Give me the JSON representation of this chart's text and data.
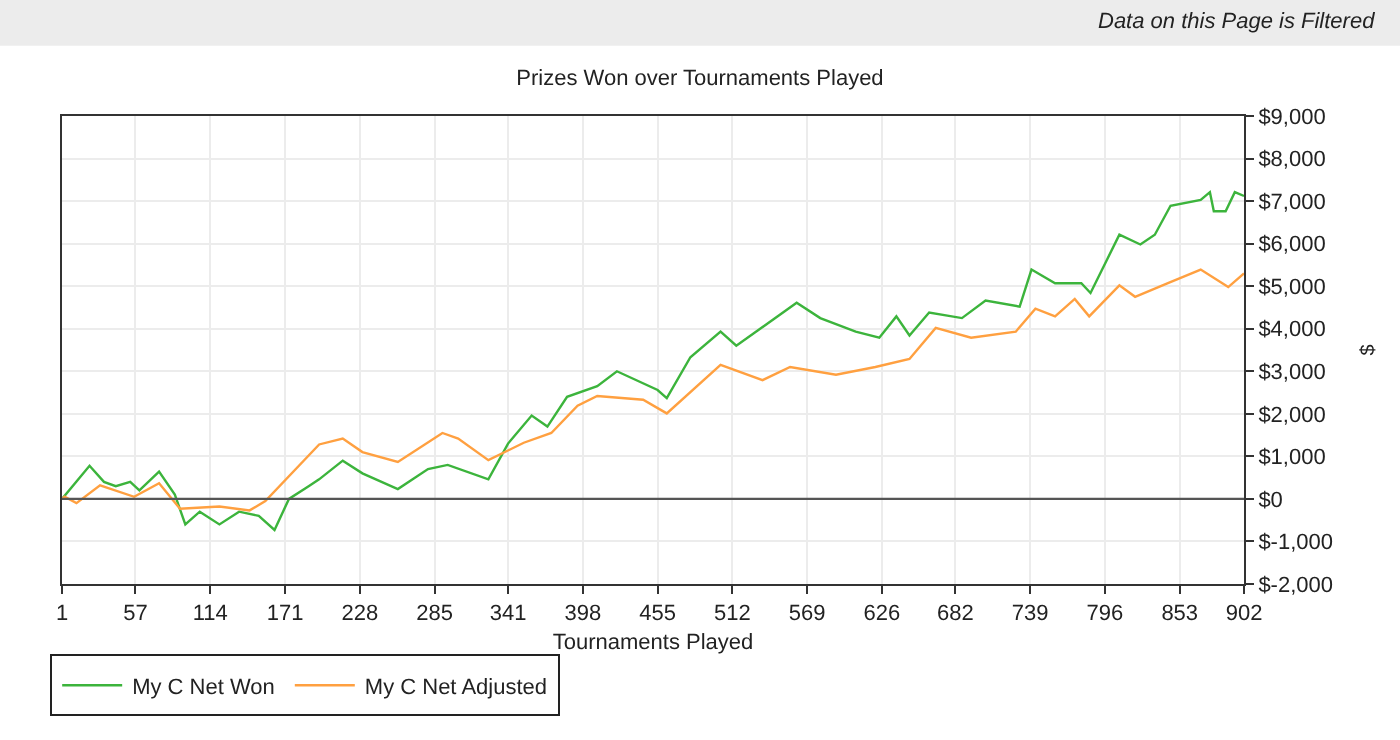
{
  "chart_data": {
    "type": "line",
    "title": "Prizes Won over Tournaments Played",
    "xlabel": "Tournaments Played",
    "ylabel": "$",
    "annotations": [
      "Data on this Page is Filtered"
    ],
    "series": [
      {
        "name": "My C Net Won",
        "color": "#3cb43c",
        "x": [
          1,
          22,
          33,
          42,
          53,
          60,
          75,
          87,
          95,
          106,
          121,
          136,
          151,
          163,
          174,
          189,
          197,
          215,
          230,
          257,
          280,
          295,
          326,
          341,
          359,
          371,
          386,
          409,
          424,
          455,
          462,
          480,
          503,
          515,
          561,
          579,
          606,
          624,
          637,
          647,
          662,
          687,
          705,
          731,
          740,
          758,
          778,
          785,
          807,
          823,
          834,
          846,
          869,
          876,
          879,
          888,
          895,
          902
        ],
        "values": [
          0,
          780,
          400,
          300,
          400,
          200,
          640,
          100,
          -600,
          -300,
          -600,
          -300,
          -400,
          -730,
          0,
          300,
          460,
          900,
          600,
          230,
          700,
          800,
          460,
          1300,
          1960,
          1700,
          2400,
          2650,
          3000,
          2560,
          2370,
          3330,
          3930,
          3600,
          4610,
          4250,
          3930,
          3790,
          4290,
          3840,
          4380,
          4250,
          4660,
          4520,
          5390,
          5070,
          5070,
          4840,
          6210,
          5980,
          6210,
          6890,
          7030,
          7210,
          6760,
          6760,
          7210,
          7120
        ]
      },
      {
        "name": "My C Net Adjusted",
        "color": "#ffa040",
        "x": [
          1,
          3,
          12,
          30,
          56,
          75,
          91,
          121,
          144,
          156,
          197,
          215,
          230,
          257,
          291,
          303,
          326,
          353,
          374,
          394,
          409,
          444,
          462,
          503,
          535,
          556,
          591,
          621,
          647,
          667,
          694,
          728,
          743,
          758,
          773,
          784,
          807,
          819,
          844,
          869,
          890,
          902
        ],
        "values": [
          0,
          50,
          -100,
          320,
          50,
          370,
          -230,
          -180,
          -270,
          -50,
          1280,
          1420,
          1100,
          870,
          1550,
          1420,
          910,
          1320,
          1550,
          2190,
          2420,
          2330,
          2010,
          3150,
          2790,
          3100,
          2920,
          3100,
          3290,
          4020,
          3790,
          3930,
          4470,
          4290,
          4700,
          4290,
          5020,
          4750,
          5070,
          5390,
          4980,
          5300
        ]
      }
    ],
    "xlim": [
      1,
      902
    ],
    "xticks": [
      1,
      57,
      114,
      171,
      228,
      285,
      341,
      398,
      455,
      512,
      569,
      626,
      682,
      739,
      796,
      853,
      902
    ],
    "ylim": [
      -2000,
      9000
    ],
    "yticks": [
      {
        "value": -2000,
        "label": "$-2,000"
      },
      {
        "value": -1000,
        "label": "$-1,000"
      },
      {
        "value": 0,
        "label": "$0"
      },
      {
        "value": 1000,
        "label": "$1,000"
      },
      {
        "value": 2000,
        "label": "$2,000"
      },
      {
        "value": 3000,
        "label": "$3,000"
      },
      {
        "value": 4000,
        "label": "$4,000"
      },
      {
        "value": 5000,
        "label": "$5,000"
      },
      {
        "value": 6000,
        "label": "$6,000"
      },
      {
        "value": 7000,
        "label": "$7,000"
      },
      {
        "value": 8000,
        "label": "$8,000"
      },
      {
        "value": 9000,
        "label": "$9,000"
      }
    ],
    "ref_lines": [
      {
        "axis": "y",
        "value": 0,
        "color": "#555555"
      }
    ],
    "grid": true,
    "legend": "bottom left",
    "marker": "none",
    "line_style": "solid"
  }
}
